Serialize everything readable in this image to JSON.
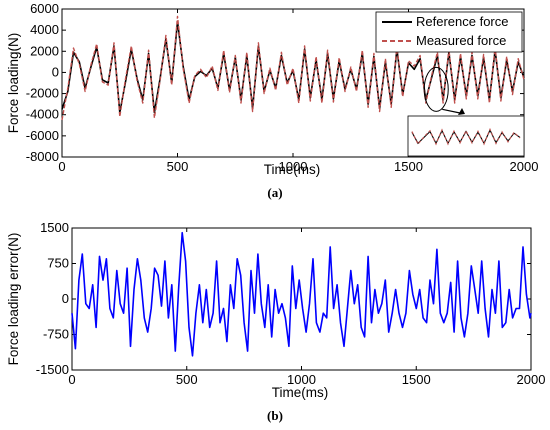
{
  "chart_data": [
    {
      "type": "line",
      "caption": "(a)",
      "xlabel": "Time(ms)",
      "ylabel": "Force loading(N)",
      "xlim": [
        0,
        2000
      ],
      "ylim": [
        -8000,
        6000
      ],
      "x_ticks": [
        "0",
        "500",
        "1000",
        "1500",
        "2000"
      ],
      "y_ticks": [
        "6000",
        "4000",
        "2000",
        "0",
        "-2000",
        "-4000",
        "-6000",
        "-8000"
      ],
      "legend_position": "top-right",
      "inset": "zoomed detail of the 1550–2000 ms segment, lower right",
      "series": [
        {
          "name": "Reference force",
          "color": "#000000",
          "x": [
            0,
            25,
            50,
            75,
            100,
            125,
            150,
            175,
            200,
            225,
            250,
            275,
            300,
            325,
            350,
            375,
            400,
            425,
            450,
            475,
            500,
            525,
            550,
            575,
            600,
            625,
            650,
            675,
            700,
            725,
            750,
            775,
            800,
            825,
            850,
            875,
            900,
            925,
            950,
            975,
            1000,
            1025,
            1050,
            1075,
            1100,
            1125,
            1150,
            1175,
            1200,
            1225,
            1250,
            1275,
            1300,
            1325,
            1350,
            1375,
            1400,
            1425,
            1450,
            1475,
            1500,
            1525,
            1550,
            1575,
            1600,
            1625,
            1650,
            1675,
            1700,
            1725,
            1750,
            1775,
            1800,
            1825,
            1850,
            1875,
            1900,
            1925,
            1950,
            1975,
            2000
          ],
          "y": [
            -3500,
            -1800,
            1900,
            1000,
            -1500,
            500,
            2400,
            -700,
            -1000,
            2500,
            -3800,
            -900,
            2200,
            -600,
            -2600,
            1800,
            -3800,
            -500,
            3200,
            -1000,
            4800,
            500,
            -2600,
            -400,
            100,
            -300,
            400,
            -1500,
            1800,
            -1700,
            1400,
            -2600,
            1600,
            -3400,
            2500,
            -1800,
            200,
            -1500,
            1600,
            -1000,
            200,
            -2600,
            2200,
            -2400,
            1200,
            -2600,
            1800,
            -2500,
            1100,
            -1600,
            300,
            -1600,
            1800,
            -3000,
            1500,
            -3400,
            1000,
            -3000,
            2200,
            -2100,
            900,
            300,
            1300,
            -2600,
            -500,
            1600,
            -2600,
            1900,
            -2600,
            1500,
            -2200,
            1600,
            -2200,
            1400,
            -2600,
            2100,
            -2400,
            1200,
            -1800,
            1000,
            -500
          ]
        },
        {
          "name": "Measured force",
          "color": "#c0504d",
          "x": [
            0,
            25,
            50,
            75,
            100,
            125,
            150,
            175,
            200,
            225,
            250,
            275,
            300,
            325,
            350,
            375,
            400,
            425,
            450,
            475,
            500,
            525,
            550,
            575,
            600,
            625,
            650,
            675,
            700,
            725,
            750,
            775,
            800,
            825,
            850,
            875,
            900,
            925,
            950,
            975,
            1000,
            1025,
            1050,
            1075,
            1100,
            1125,
            1150,
            1175,
            1200,
            1225,
            1250,
            1275,
            1300,
            1325,
            1350,
            1375,
            1400,
            1425,
            1450,
            1475,
            1500,
            1525,
            1550,
            1575,
            1600,
            1625,
            1650,
            1675,
            1700,
            1725,
            1750,
            1775,
            1800,
            1825,
            1850,
            1875,
            1900,
            1925,
            1950,
            1975,
            2000
          ],
          "y": [
            -4500,
            -1500,
            2300,
            800,
            -1800,
            700,
            2700,
            -900,
            -1200,
            2800,
            -4200,
            -600,
            2500,
            -800,
            -2900,
            2100,
            -4300,
            -700,
            3500,
            -1200,
            5300,
            300,
            -2900,
            -300,
            300,
            -500,
            600,
            -1700,
            2100,
            -1900,
            1600,
            -2900,
            1900,
            -3700,
            2800,
            -2000,
            400,
            -1700,
            1900,
            -1200,
            400,
            -2900,
            2500,
            -2700,
            1500,
            -2900,
            2100,
            -2800,
            1400,
            -1800,
            500,
            -1800,
            2100,
            -3300,
            1800,
            -3700,
            1300,
            -3300,
            2500,
            -2300,
            1100,
            600,
            1600,
            -2900,
            -300,
            1900,
            -2900,
            2200,
            -2900,
            1800,
            -2500,
            1900,
            -2500,
            1700,
            -2900,
            2400,
            -2700,
            1500,
            -2100,
            1300,
            -700
          ]
        }
      ]
    },
    {
      "type": "line",
      "caption": "(b)",
      "xlabel": "Time(ms)",
      "ylabel": "Force loading error(N)",
      "xlim": [
        0,
        2000
      ],
      "ylim": [
        -1500,
        1500
      ],
      "x_ticks": [
        "0",
        "500",
        "1000",
        "1500",
        "2000"
      ],
      "y_ticks": [
        "1500",
        "750",
        "0",
        "-750",
        "-1500"
      ],
      "series": [
        {
          "color": "#0000ff",
          "x": [
            0,
            15,
            30,
            45,
            60,
            75,
            90,
            105,
            120,
            135,
            150,
            165,
            180,
            195,
            210,
            225,
            240,
            255,
            270,
            285,
            300,
            315,
            330,
            345,
            360,
            375,
            390,
            405,
            420,
            435,
            450,
            465,
            480,
            495,
            510,
            525,
            540,
            555,
            570,
            585,
            600,
            615,
            630,
            645,
            660,
            675,
            690,
            705,
            720,
            735,
            750,
            765,
            780,
            795,
            810,
            825,
            840,
            855,
            870,
            885,
            900,
            915,
            930,
            945,
            960,
            975,
            990,
            1005,
            1020,
            1035,
            1050,
            1065,
            1080,
            1095,
            1110,
            1125,
            1140,
            1155,
            1170,
            1185,
            1200,
            1215,
            1230,
            1245,
            1260,
            1275,
            1290,
            1305,
            1320,
            1335,
            1350,
            1365,
            1380,
            1395,
            1410,
            1425,
            1440,
            1455,
            1470,
            1485,
            1500,
            1515,
            1530,
            1545,
            1560,
            1575,
            1590,
            1605,
            1620,
            1635,
            1650,
            1665,
            1680,
            1695,
            1710,
            1725,
            1740,
            1755,
            1770,
            1785,
            1800,
            1815,
            1830,
            1845,
            1860,
            1875,
            1890,
            1905,
            1920,
            1935,
            1950,
            1965,
            1980,
            1995,
            2000
          ],
          "y": [
            -300,
            -1050,
            400,
            950,
            -100,
            -200,
            300,
            -600,
            900,
            400,
            850,
            -200,
            -400,
            600,
            -100,
            -300,
            650,
            -1000,
            200,
            850,
            400,
            -400,
            -700,
            -200,
            650,
            500,
            -150,
            800,
            -400,
            300,
            -1100,
            250,
            1400,
            800,
            -600,
            -1200,
            -300,
            300,
            -500,
            200,
            -600,
            -300,
            800,
            -500,
            -200,
            -900,
            300,
            -200,
            850,
            500,
            -500,
            -1100,
            600,
            -300,
            950,
            -100,
            -600,
            300,
            -800,
            200,
            -300,
            -100,
            -400,
            -1000,
            700,
            -200,
            400,
            -200,
            -700,
            -100,
            850,
            -500,
            -700,
            -300,
            -400,
            1100,
            -200,
            300,
            -500,
            -1000,
            -200,
            600,
            -100,
            300,
            -600,
            -800,
            900,
            -500,
            200,
            -300,
            -100,
            400,
            -700,
            -300,
            200,
            -300,
            -600,
            -300,
            600,
            100,
            -200,
            200,
            -400,
            -500,
            400,
            -100,
            1050,
            -300,
            -500,
            -300,
            350,
            -700,
            800,
            -400,
            -800,
            -300,
            700,
            200,
            -300,
            800,
            -200,
            -800,
            200,
            -300,
            800,
            -600,
            -500,
            200,
            -400,
            -200,
            -200,
            1100,
            100,
            -400,
            -300
          ]
        }
      ]
    }
  ]
}
